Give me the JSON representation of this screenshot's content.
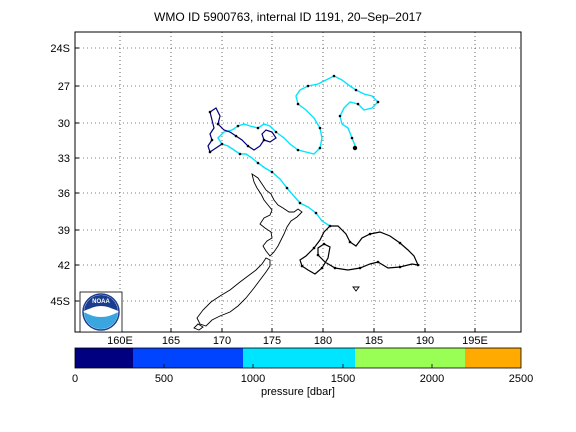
{
  "title": "WMO ID 5900763, internal ID 1191, 20–Sep–2017",
  "map": {
    "lat_ticks": [
      "24S",
      "27",
      "30",
      "33",
      "36",
      "39",
      "42",
      "45S"
    ],
    "lon_ticks": [
      "160E",
      "165",
      "170",
      "175",
      "180",
      "185",
      "190",
      "195E"
    ],
    "grid": true,
    "track_colors": [
      "#000080",
      "#00e5ff"
    ]
  },
  "logo": {
    "name": "noaa-logo",
    "text": "NOAA"
  },
  "colorbar": {
    "label": "pressure [dbar]",
    "ticks": [
      "0",
      "500",
      "1000",
      "1500",
      "2000",
      "2500"
    ],
    "colors": [
      "#000080",
      "#0044ff",
      "#00e5ff",
      "#99ff55",
      "#ffaa00"
    ]
  }
}
